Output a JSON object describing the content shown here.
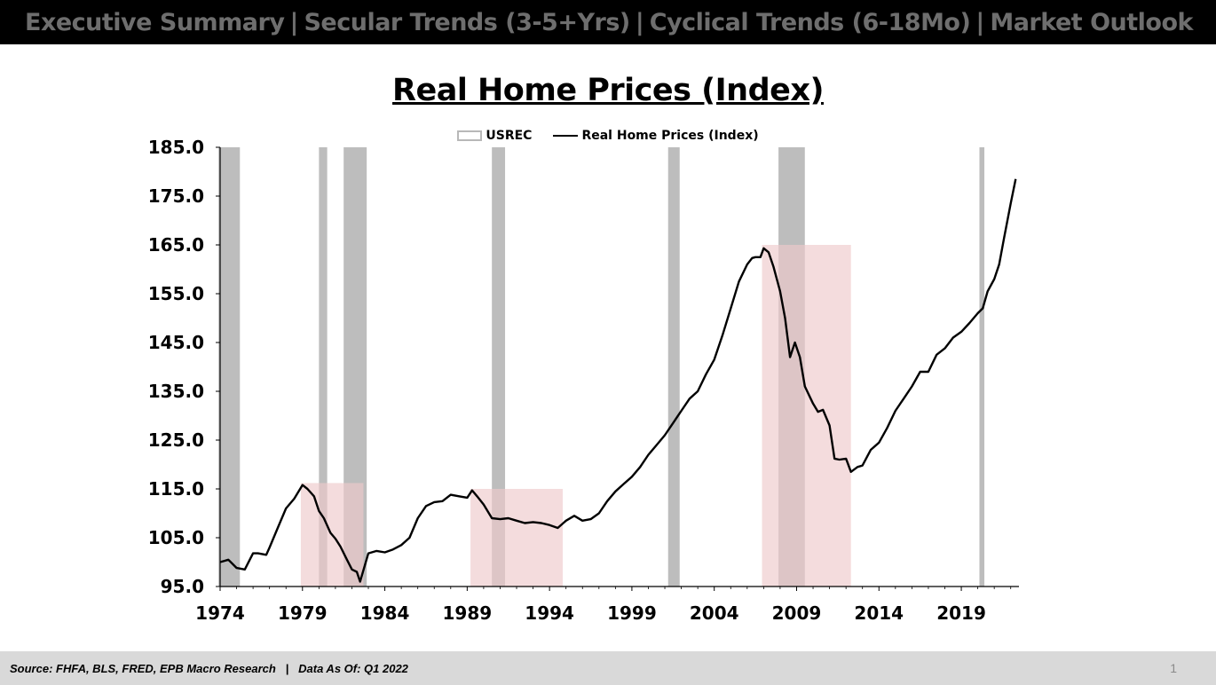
{
  "nav": {
    "items": [
      "Executive Summary",
      "Secular Trends (3-5+Yrs)",
      "Cyclical Trends (6-18Mo)",
      "Market Outlook"
    ],
    "separator": "|"
  },
  "footer": {
    "source": "Source: FHFA, BLS, FRED, EPB Macro Research",
    "separator": "|",
    "data_as_of": "Data As Of: Q1 2022",
    "page_number": "1"
  },
  "colors": {
    "recession_bar": "#bdbdbd",
    "highlight_box": "#eec9cb",
    "line": "#000000",
    "nav_bg": "#000000",
    "footer_bg": "#d9d9d9"
  },
  "chart_data": {
    "type": "line",
    "title": "Real Home Prices (Index)",
    "legend": [
      "USREC",
      "Real Home Prices (Index)"
    ],
    "legend_position": "top-center",
    "ylim": [
      95,
      185
    ],
    "yticks": [
      "185.0",
      "175.0",
      "165.0",
      "155.0",
      "145.0",
      "135.0",
      "125.0",
      "115.0",
      "105.0",
      "95.0"
    ],
    "xlim": [
      1974,
      2022.5
    ],
    "xticks": [
      "1974",
      "1979",
      "1984",
      "1989",
      "1994",
      "1999",
      "2004",
      "2009",
      "2014",
      "2019"
    ],
    "grid": false,
    "recessions": [
      [
        1973.9,
        1975.2
      ],
      [
        1980.0,
        1980.5
      ],
      [
        1981.5,
        1982.9
      ],
      [
        1990.5,
        1991.3
      ],
      [
        2001.2,
        2001.9
      ],
      [
        2007.9,
        2009.5
      ],
      [
        2020.1,
        2020.4
      ]
    ],
    "highlight_boxes": [
      {
        "x": [
          1978.9,
          1982.7
        ],
        "y": [
          95,
          116.2
        ]
      },
      {
        "x": [
          1989.2,
          1994.8
        ],
        "y": [
          95,
          115.0
        ]
      },
      {
        "x": [
          2006.9,
          2012.3
        ],
        "y": [
          95,
          165.0
        ]
      }
    ],
    "series": [
      {
        "name": "Real Home Prices (Index)",
        "x": [
          1974.0,
          1974.5,
          1975.0,
          1975.5,
          1976.0,
          1976.3,
          1976.8,
          1977.0,
          1977.5,
          1978.0,
          1978.5,
          1979.0,
          1979.3,
          1979.7,
          1980.0,
          1980.3,
          1980.7,
          1981.0,
          1981.3,
          1981.7,
          1982.0,
          1982.3,
          1982.5,
          1983.0,
          1983.5,
          1984.0,
          1984.5,
          1985.0,
          1985.5,
          1986.0,
          1986.5,
          1987.0,
          1987.5,
          1988.0,
          1988.5,
          1989.0,
          1989.3,
          1989.6,
          1990.0,
          1990.5,
          1991.0,
          1991.5,
          1992.0,
          1992.5,
          1993.0,
          1993.5,
          1994.0,
          1994.5,
          1995.0,
          1995.5,
          1996.0,
          1996.5,
          1997.0,
          1997.5,
          1998.0,
          1998.5,
          1999.0,
          1999.5,
          2000.0,
          2000.5,
          2001.0,
          2001.5,
          2002.0,
          2002.5,
          2003.0,
          2003.5,
          2004.0,
          2004.5,
          2005.0,
          2005.5,
          2006.0,
          2006.3,
          2006.5,
          2006.8,
          2007.0,
          2007.3,
          2007.6,
          2008.0,
          2008.3,
          2008.6,
          2008.9,
          2009.2,
          2009.5,
          2010.0,
          2010.3,
          2010.6,
          2011.0,
          2011.3,
          2011.6,
          2012.0,
          2012.3,
          2012.7,
          2013.0,
          2013.5,
          2014.0,
          2014.5,
          2015.0,
          2015.5,
          2016.0,
          2016.5,
          2017.0,
          2017.5,
          2018.0,
          2018.5,
          2019.0,
          2019.5,
          2020.0,
          2020.3,
          2020.6,
          2021.0,
          2021.3,
          2021.6,
          2022.0,
          2022.3
        ],
        "y": [
          100.0,
          100.5,
          98.8,
          98.5,
          101.8,
          101.8,
          101.5,
          103.0,
          107.0,
          111.0,
          113.0,
          115.8,
          115.0,
          113.5,
          110.5,
          109.0,
          106.0,
          104.8,
          103.2,
          100.5,
          98.5,
          98.0,
          96.0,
          101.8,
          102.3,
          102.0,
          102.6,
          103.5,
          105.0,
          109.0,
          111.5,
          112.3,
          112.5,
          113.8,
          113.5,
          113.2,
          114.7,
          113.5,
          111.8,
          109.0,
          108.8,
          109.0,
          108.5,
          108.0,
          108.2,
          108.0,
          107.6,
          107.0,
          108.5,
          109.5,
          108.5,
          108.8,
          110.0,
          112.5,
          114.5,
          116.0,
          117.5,
          119.5,
          122.0,
          124.0,
          126.0,
          128.5,
          131.0,
          133.5,
          135.0,
          138.5,
          141.5,
          146.5,
          152.0,
          157.5,
          161.0,
          162.3,
          162.5,
          162.5,
          164.3,
          163.5,
          160.5,
          155.5,
          150.0,
          142.0,
          145.0,
          142.0,
          136.0,
          132.5,
          130.8,
          131.2,
          128.0,
          121.2,
          121.0,
          121.2,
          118.5,
          119.5,
          119.8,
          123.0,
          124.5,
          127.5,
          131.0,
          133.5,
          136.0,
          139.0,
          139.0,
          142.5,
          143.8,
          146.0,
          147.2,
          149.0,
          151.0,
          152.0,
          155.5,
          158.0,
          161.0,
          166.5,
          173.5,
          178.5
        ]
      }
    ]
  }
}
